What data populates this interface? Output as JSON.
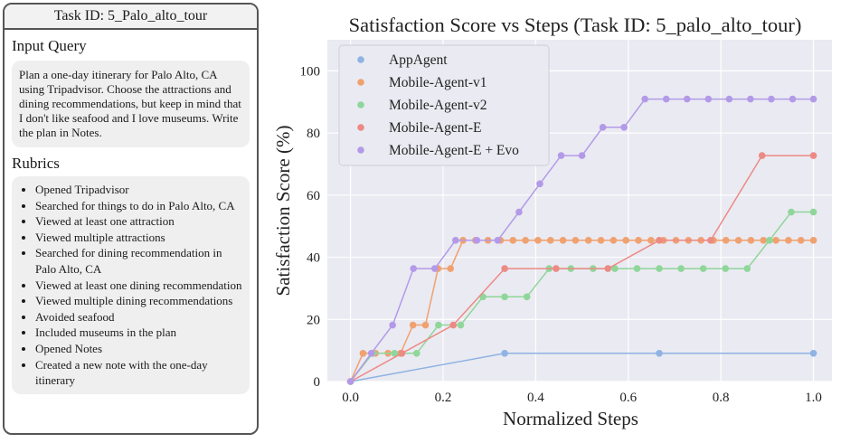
{
  "panel": {
    "header": "Task ID: 5_Palo_alto_tour",
    "query_title": "Input Query",
    "query_text": "Plan a one-day itinerary for Palo Alto, CA using Tripadvisor. Choose the attractions and dining recommendations, but keep in mind that I don't like seafood and I love museums. Write the plan in Notes.",
    "rubrics_title": "Rubrics",
    "rubrics": [
      "Opened Tripadvisor",
      "Searched for things to do in Palo Alto, CA",
      "Viewed at least one attraction",
      "Viewed multiple attractions",
      "Searched for dining recommendation in Palo Alto, CA",
      "Viewed at least one dining recommendation",
      "Viewed multiple dining recommendations",
      "Avoided seafood",
      "Included museums in the plan",
      "Opened Notes",
      "Created a new note with the one-day itinerary"
    ]
  },
  "chart_data": {
    "type": "line",
    "title": "Satisfaction Score vs Steps (Task ID: 5_palo_alto_tour)",
    "xlabel": "Normalized Steps",
    "ylabel": "Satisfaction Score (%)",
    "xlim": [
      -0.05,
      1.04
    ],
    "ylim": [
      0,
      110
    ],
    "xticks": [
      "0.0",
      "0.2",
      "0.4",
      "0.6",
      "0.8",
      "1.0"
    ],
    "yticks": [
      "0",
      "20",
      "40",
      "60",
      "80",
      "100"
    ],
    "grid": true,
    "legend": "top-left",
    "series": [
      {
        "name": "AppAgent",
        "color": "#8fb3e3",
        "x": [
          0,
          0.333,
          0.667,
          1.0
        ],
        "y": [
          0,
          9.09,
          9.09,
          9.09
        ]
      },
      {
        "name": "Mobile-Agent-v1",
        "color": "#f0a170",
        "x": [
          0,
          0.027,
          0.054,
          0.081,
          0.108,
          0.135,
          0.162,
          0.189,
          0.216,
          0.243,
          0.27,
          0.297,
          0.324,
          0.351,
          0.378,
          0.405,
          0.432,
          0.459,
          0.486,
          0.514,
          0.541,
          0.568,
          0.595,
          0.622,
          0.649,
          0.676,
          0.703,
          0.73,
          0.757,
          0.784,
          0.811,
          0.838,
          0.865,
          0.892,
          0.919,
          0.946,
          0.973,
          1.0
        ],
        "y": [
          0,
          9.09,
          9.09,
          9.09,
          9.09,
          18.18,
          18.18,
          36.36,
          36.36,
          45.45,
          45.45,
          45.45,
          45.45,
          45.45,
          45.45,
          45.45,
          45.45,
          45.45,
          45.45,
          45.45,
          45.45,
          45.45,
          45.45,
          45.45,
          45.45,
          45.45,
          45.45,
          45.45,
          45.45,
          45.45,
          45.45,
          45.45,
          45.45,
          45.45,
          45.45,
          45.45,
          45.45,
          45.45
        ]
      },
      {
        "name": "Mobile-Agent-v2",
        "color": "#8fd69a",
        "x": [
          0,
          0.048,
          0.095,
          0.143,
          0.19,
          0.238,
          0.286,
          0.333,
          0.381,
          0.429,
          0.476,
          0.524,
          0.571,
          0.619,
          0.667,
          0.714,
          0.762,
          0.81,
          0.857,
          0.905,
          0.952,
          1.0
        ],
        "y": [
          0,
          9.09,
          9.09,
          9.09,
          18.18,
          18.18,
          27.27,
          27.27,
          27.27,
          36.36,
          36.36,
          36.36,
          36.36,
          36.36,
          36.36,
          36.36,
          36.36,
          36.36,
          36.36,
          45.45,
          54.55,
          54.55
        ]
      },
      {
        "name": "Mobile-Agent-E",
        "color": "#ec8a84",
        "x": [
          0,
          0.111,
          0.222,
          0.333,
          0.444,
          0.556,
          0.667,
          0.778,
          0.889,
          1.0
        ],
        "y": [
          0,
          9.09,
          18.18,
          36.36,
          36.36,
          36.36,
          45.45,
          45.45,
          72.73,
          72.73
        ]
      },
      {
        "name": "Mobile-Agent-E + Evo",
        "color": "#b39ae8",
        "x": [
          0,
          0.045,
          0.091,
          0.136,
          0.182,
          0.227,
          0.273,
          0.318,
          0.364,
          0.409,
          0.455,
          0.5,
          0.545,
          0.591,
          0.636,
          0.682,
          0.727,
          0.773,
          0.818,
          0.864,
          0.909,
          0.955,
          1.0
        ],
        "y": [
          0,
          9.09,
          18.18,
          36.36,
          36.36,
          45.45,
          45.45,
          45.45,
          54.55,
          63.64,
          72.73,
          72.73,
          81.82,
          81.82,
          90.91,
          90.91,
          90.91,
          90.91,
          90.91,
          90.91,
          90.91,
          90.91,
          90.91
        ]
      }
    ]
  }
}
